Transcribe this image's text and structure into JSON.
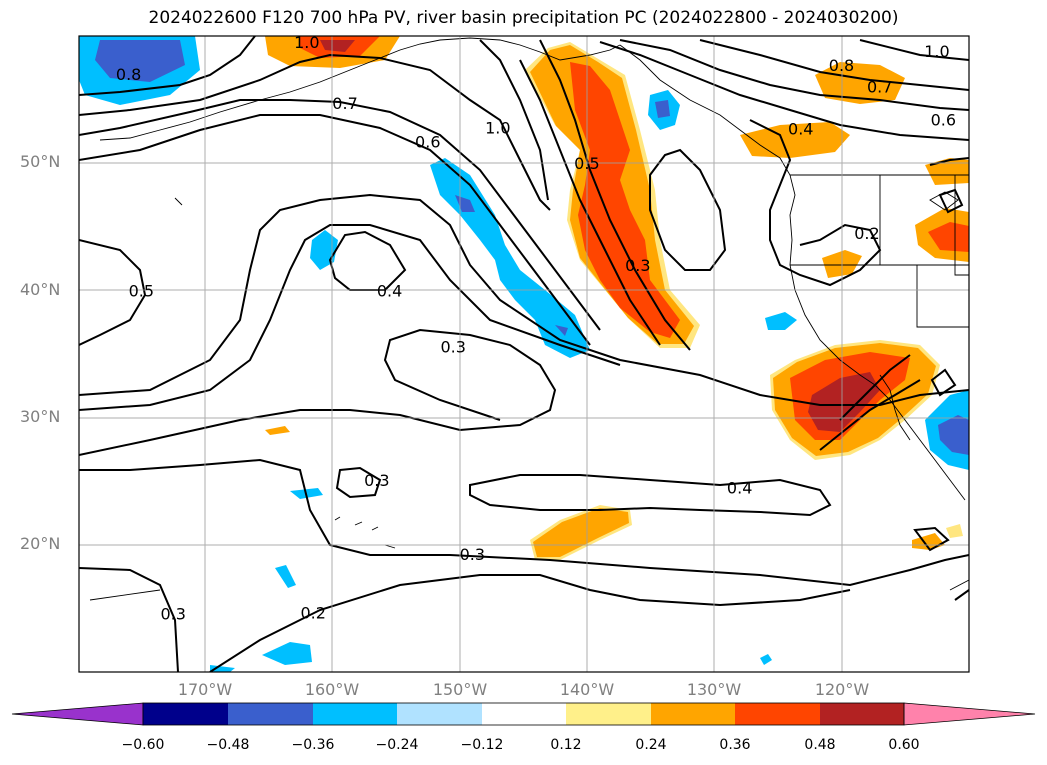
{
  "title": "2024022600 F120 700 hPa PV, river basin precipitation PC (2024022800 - 2024030200)",
  "colors": {
    "neg_060": "#9932cc",
    "neg_048": "#00008b",
    "neg_036": "#3a5fcd",
    "neg_024": "#00bfff",
    "neg_012": "#b0e2ff",
    "neutral": "#ffffff",
    "pos_012": "#fff08a",
    "pos_024": "#ffa500",
    "pos_036": "#ff4500",
    "pos_048": "#b22222",
    "pos_060": "#ff82ab"
  },
  "lat_labels": [
    "50°N",
    "40°N",
    "30°N",
    "20°N"
  ],
  "lon_labels": [
    "170°W",
    "160°W",
    "150°W",
    "140°W",
    "130°W",
    "120°W"
  ],
  "colorbar_labels": [
    "−0.60",
    "−0.48",
    "−0.36",
    "−0.24",
    "−0.12",
    "0.12",
    "0.24",
    "0.36",
    "0.48",
    "0.60"
  ],
  "contour_labels": [
    {
      "text": "1.0",
      "lon": -162,
      "lat": 59.5
    },
    {
      "text": "0.8",
      "lon": -176,
      "lat": 57
    },
    {
      "text": "0.7",
      "lon": -159,
      "lat": 54.7
    },
    {
      "text": "1.0",
      "lon": -147,
      "lat": 52.8
    },
    {
      "text": "0.6",
      "lon": -152.5,
      "lat": 51.7
    },
    {
      "text": "0.5",
      "lon": -140,
      "lat": 50
    },
    {
      "text": "0.8",
      "lon": -120,
      "lat": 57.7
    },
    {
      "text": "0.7",
      "lon": -117,
      "lat": 56
    },
    {
      "text": "1.0",
      "lon": -112.5,
      "lat": 58.8
    },
    {
      "text": "0.6",
      "lon": -112,
      "lat": 53.4
    },
    {
      "text": "0.4",
      "lon": -123.2,
      "lat": 52.7
    },
    {
      "text": "0.2",
      "lon": -118,
      "lat": 44.5
    },
    {
      "text": "0.3",
      "lon": -136,
      "lat": 42
    },
    {
      "text": "0.5",
      "lon": -175,
      "lat": 40
    },
    {
      "text": "0.4",
      "lon": -155.5,
      "lat": 40
    },
    {
      "text": "0.3",
      "lon": -150.5,
      "lat": 35.6
    },
    {
      "text": "0.3",
      "lon": -156.5,
      "lat": 25.1
    },
    {
      "text": "0.4",
      "lon": -128,
      "lat": 24.5
    },
    {
      "text": "0.3",
      "lon": -149,
      "lat": 19.3
    },
    {
      "text": "0.2",
      "lon": -161.5,
      "lat": 14.7
    },
    {
      "text": "0.3",
      "lon": -172.5,
      "lat": 14.6
    }
  ]
}
